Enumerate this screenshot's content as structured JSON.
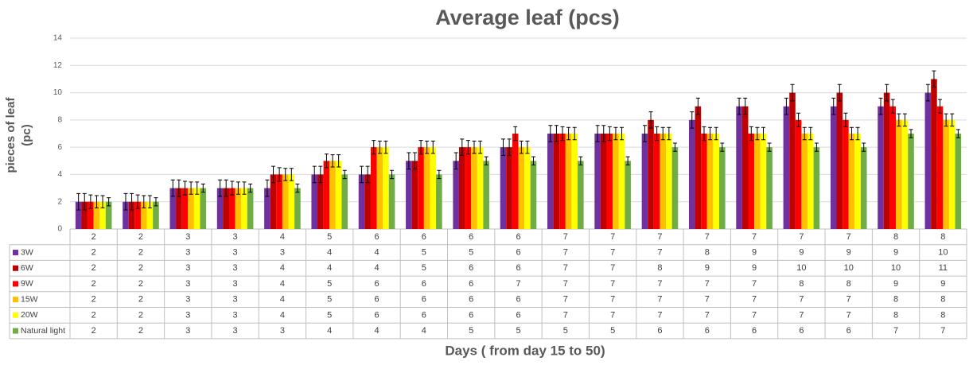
{
  "chart_data": {
    "type": "bar",
    "title": "Average leaf (pcs)",
    "y_label": "pieces of leaf (pc)",
    "x_label": "Days ( from day 15 to 50)",
    "categories": [
      "2",
      "2",
      "3",
      "3",
      "4",
      "5",
      "6",
      "6",
      "6",
      "6",
      "7",
      "7",
      "7",
      "7",
      "7",
      "7",
      "7",
      "8",
      "8"
    ],
    "series": [
      {
        "name": "3W",
        "color": "#7030a0",
        "values": [
          2,
          2,
          3,
          3,
          3,
          4,
          4,
          5,
          5,
          6,
          7,
          7,
          7,
          8,
          9,
          9,
          9,
          9,
          10
        ],
        "errors": [
          0.6,
          0.6,
          0.6,
          0.6,
          0.6,
          0.6,
          0.6,
          0.6,
          0.6,
          0.6,
          0.6,
          0.6,
          0.6,
          0.6,
          0.6,
          0.6,
          0.6,
          0.6,
          0.6
        ]
      },
      {
        "name": "6W",
        "color": "#c00000",
        "values": [
          2,
          2,
          3,
          3,
          4,
          4,
          4,
          5,
          6,
          6,
          7,
          7,
          8,
          9,
          9,
          10,
          10,
          10,
          11
        ],
        "errors": [
          0.6,
          0.6,
          0.6,
          0.6,
          0.6,
          0.6,
          0.6,
          0.6,
          0.6,
          0.6,
          0.6,
          0.6,
          0.6,
          0.6,
          0.6,
          0.6,
          0.6,
          0.6,
          0.6
        ]
      },
      {
        "name": "9W",
        "color": "#ff0000",
        "values": [
          2,
          2,
          3,
          3,
          4,
          5,
          6,
          6,
          6,
          7,
          7,
          7,
          7,
          7,
          7,
          8,
          8,
          9,
          9
        ],
        "errors": [
          0.5,
          0.5,
          0.5,
          0.5,
          0.5,
          0.5,
          0.5,
          0.5,
          0.5,
          0.5,
          0.5,
          0.5,
          0.5,
          0.5,
          0.5,
          0.5,
          0.5,
          0.5,
          0.5
        ]
      },
      {
        "name": "15W",
        "color": "#ffc000",
        "values": [
          2,
          2,
          3,
          3,
          4,
          5,
          6,
          6,
          6,
          6,
          7,
          7,
          7,
          7,
          7,
          7,
          7,
          8,
          8
        ],
        "errors": [
          0.45,
          0.45,
          0.45,
          0.45,
          0.45,
          0.45,
          0.45,
          0.45,
          0.45,
          0.45,
          0.45,
          0.45,
          0.45,
          0.45,
          0.45,
          0.45,
          0.45,
          0.45,
          0.45
        ]
      },
      {
        "name": "20W",
        "color": "#ffff00",
        "values": [
          2,
          2,
          3,
          3,
          4,
          5,
          6,
          6,
          6,
          6,
          7,
          7,
          7,
          7,
          7,
          7,
          7,
          8,
          8
        ],
        "errors": [
          0.45,
          0.45,
          0.45,
          0.45,
          0.45,
          0.45,
          0.45,
          0.45,
          0.45,
          0.45,
          0.45,
          0.45,
          0.45,
          0.45,
          0.45,
          0.45,
          0.45,
          0.45,
          0.45
        ]
      },
      {
        "name": "Natural light",
        "color": "#70ad47",
        "values": [
          2,
          2,
          3,
          3,
          3,
          4,
          4,
          4,
          5,
          5,
          5,
          5,
          6,
          6,
          6,
          6,
          6,
          7,
          7
        ],
        "errors": [
          0.3,
          0.3,
          0.3,
          0.3,
          0.3,
          0.3,
          0.3,
          0.3,
          0.3,
          0.3,
          0.3,
          0.3,
          0.3,
          0.3,
          0.3,
          0.3,
          0.3,
          0.3,
          0.3
        ]
      }
    ],
    "ylim": [
      0,
      14
    ],
    "yticks": [
      0,
      2,
      4,
      6,
      8,
      10,
      12,
      14
    ],
    "grid": true
  }
}
